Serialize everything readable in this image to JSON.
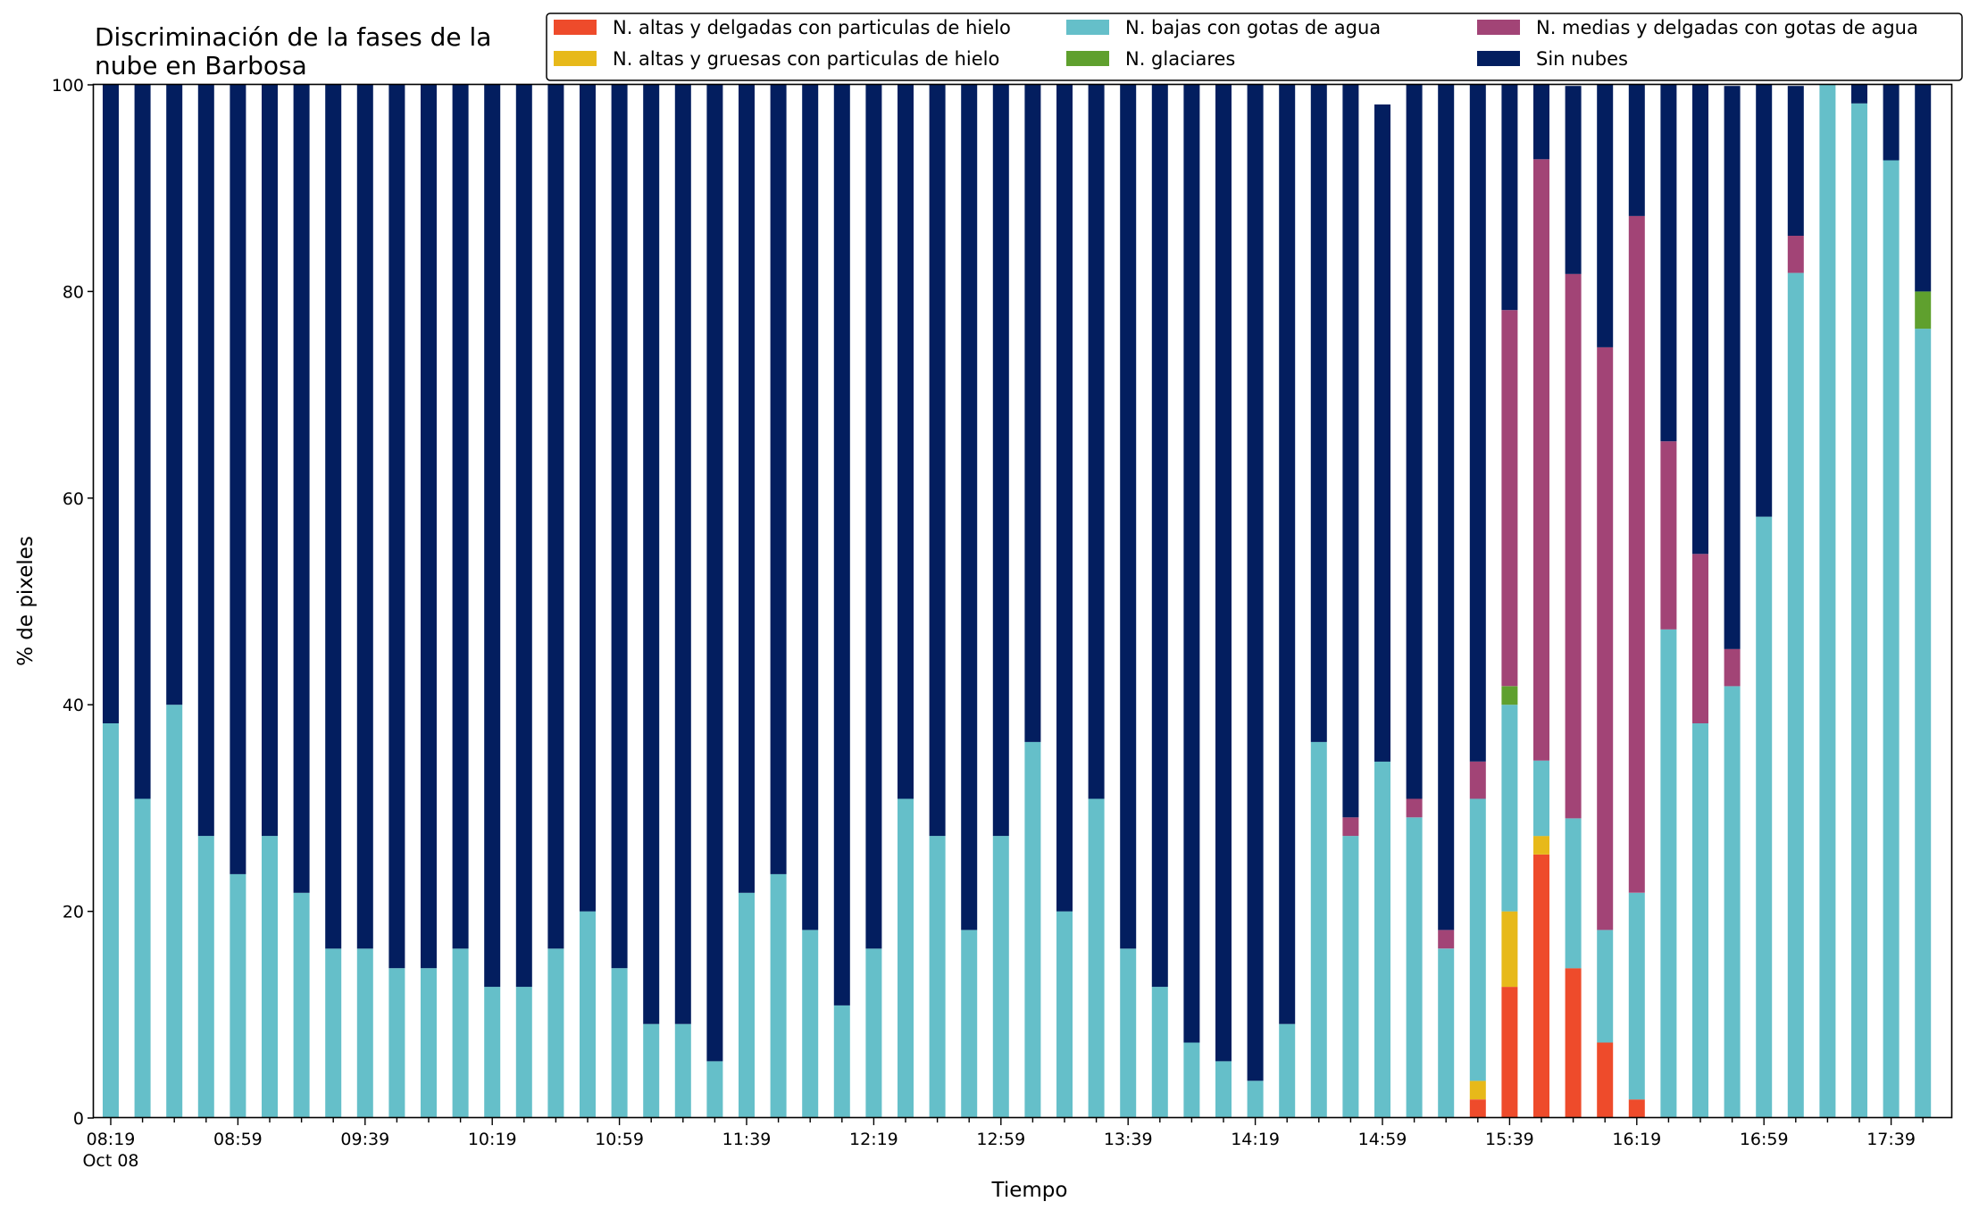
{
  "chart_data": {
    "type": "bar",
    "stacked": true,
    "title": "Discriminación de la fases de la\nnube en Barbosa",
    "xlabel": "Tiempo",
    "ylabel": "% de pixeles",
    "ylim": [
      0,
      100
    ],
    "y_ticks": [
      0,
      20,
      40,
      60,
      80,
      100
    ],
    "x_tick_labels": [
      "08:19",
      "08:59",
      "09:39",
      "10:19",
      "10:59",
      "11:39",
      "12:19",
      "12:59",
      "13:39",
      "14:19",
      "14:59",
      "15:39",
      "16:19",
      "16:59",
      "17:39"
    ],
    "x_date_label": "Oct 08",
    "grid": false,
    "legend_position": "top-right",
    "categories": [
      "08:19",
      "08:29",
      "08:39",
      "08:49",
      "08:59",
      "09:09",
      "09:19",
      "09:29",
      "09:39",
      "09:49",
      "09:59",
      "10:09",
      "10:19",
      "10:29",
      "10:39",
      "10:49",
      "10:59",
      "11:09",
      "11:19",
      "11:29",
      "11:39",
      "11:49",
      "11:59",
      "12:09",
      "12:19",
      "12:29",
      "12:39",
      "12:49",
      "12:59",
      "13:09",
      "13:19",
      "13:29",
      "13:39",
      "13:49",
      "13:59",
      "14:09",
      "14:19",
      "14:29",
      "14:39",
      "14:49",
      "14:59",
      "15:09",
      "15:19",
      "15:29",
      "15:39",
      "15:49",
      "15:59",
      "16:09",
      "16:19",
      "16:29",
      "16:39",
      "16:49",
      "16:59",
      "17:09",
      "17:19",
      "17:29",
      "17:39",
      "17:49"
    ],
    "series": [
      {
        "name": "N. altas y delgadas con particulas de hielo",
        "color": "#ee4b2b",
        "values": [
          0,
          0,
          0,
          0,
          0,
          0,
          0,
          0,
          0,
          0,
          0,
          0,
          0,
          0,
          0,
          0,
          0,
          0,
          0,
          0,
          0,
          0,
          0,
          0,
          0,
          0,
          0,
          0,
          0,
          0,
          0,
          0,
          0,
          0,
          0,
          0,
          0,
          0,
          0,
          0,
          0,
          0,
          0,
          1.8,
          12.7,
          25.5,
          14.5,
          7.3,
          1.8,
          0,
          0,
          0,
          0,
          0,
          0,
          0,
          0,
          0
        ]
      },
      {
        "name": "N. altas y gruesas con particulas de hielo",
        "color": "#e7b91a",
        "values": [
          0,
          0,
          0,
          0,
          0,
          0,
          0,
          0,
          0,
          0,
          0,
          0,
          0,
          0,
          0,
          0,
          0,
          0,
          0,
          0,
          0,
          0,
          0,
          0,
          0,
          0,
          0,
          0,
          0,
          0,
          0,
          0,
          0,
          0,
          0,
          0,
          0,
          0,
          0,
          0,
          0,
          0,
          0,
          1.8,
          7.3,
          1.8,
          0,
          0,
          0,
          0,
          0,
          0,
          0,
          0,
          0,
          0,
          0,
          0
        ]
      },
      {
        "name": "N. bajas con gotas de agua",
        "color": "#65bfc9",
        "values": [
          38.2,
          30.9,
          40.0,
          27.3,
          23.6,
          27.3,
          21.8,
          16.4,
          16.4,
          14.5,
          14.5,
          16.4,
          12.7,
          12.7,
          16.4,
          20.0,
          14.5,
          9.1,
          9.1,
          5.5,
          21.8,
          23.6,
          18.2,
          10.9,
          16.4,
          30.9,
          27.3,
          18.2,
          27.3,
          36.4,
          20.0,
          30.9,
          16.4,
          12.7,
          7.3,
          5.5,
          3.6,
          9.1,
          36.4,
          27.3,
          34.5,
          29.1,
          16.4,
          27.3,
          20.0,
          7.3,
          14.5,
          10.9,
          20.0,
          47.3,
          38.2,
          41.8,
          58.2,
          81.8,
          100,
          98.2,
          92.7,
          76.4
        ]
      },
      {
        "name": "N. glaciares",
        "color": "#5fa02e",
        "values": [
          0,
          0,
          0,
          0,
          0,
          0,
          0,
          0,
          0,
          0,
          0,
          0,
          0,
          0,
          0,
          0,
          0,
          0,
          0,
          0,
          0,
          0,
          0,
          0,
          0,
          0,
          0,
          0,
          0,
          0,
          0,
          0,
          0,
          0,
          0,
          0,
          0,
          0,
          0,
          0,
          0,
          0,
          0,
          0,
          1.8,
          0,
          0,
          0,
          0,
          0,
          0,
          0,
          0,
          0,
          0,
          0,
          0,
          3.6
        ]
      },
      {
        "name": "N. medias y delgadas con gotas de agua",
        "color": "#a24476",
        "values": [
          0,
          0,
          0,
          0,
          0,
          0,
          0,
          0,
          0,
          0,
          0,
          0,
          0,
          0,
          0,
          0,
          0,
          0,
          0,
          0,
          0,
          0,
          0,
          0,
          0,
          0,
          0,
          0,
          0,
          0,
          0,
          0,
          0,
          0,
          0,
          0,
          0,
          0,
          0,
          1.8,
          0,
          1.8,
          1.8,
          3.6,
          36.4,
          58.2,
          52.7,
          56.4,
          65.5,
          18.2,
          16.4,
          3.6,
          0,
          3.6,
          0,
          0,
          0,
          0
        ]
      },
      {
        "name": "Sin nubes",
        "color": "#031e5f",
        "values": [
          61.8,
          69.1,
          60.0,
          72.7,
          76.4,
          72.7,
          78.2,
          83.6,
          83.6,
          85.5,
          85.5,
          83.6,
          87.3,
          87.3,
          83.6,
          80.0,
          85.5,
          90.9,
          90.9,
          94.5,
          78.2,
          76.4,
          81.8,
          89.1,
          83.6,
          69.1,
          72.7,
          81.8,
          72.7,
          63.6,
          80.0,
          69.1,
          83.6,
          87.3,
          92.7,
          94.5,
          96.4,
          90.9,
          63.6,
          70.9,
          63.6,
          70.9,
          81.8,
          65.5,
          21.8,
          7.3,
          18.2,
          25.5,
          12.7,
          34.5,
          45.5,
          54.5,
          41.8,
          14.5,
          0,
          1.8,
          7.3,
          20.0
        ]
      }
    ],
    "legend_order": [
      "N. altas y delgadas con particulas de hielo",
      "N. altas y gruesas con particulas de hielo",
      "N. bajas con gotas de agua",
      "N. glaciares",
      "N. medias y delgadas con gotas de agua",
      "Sin nubes"
    ]
  }
}
